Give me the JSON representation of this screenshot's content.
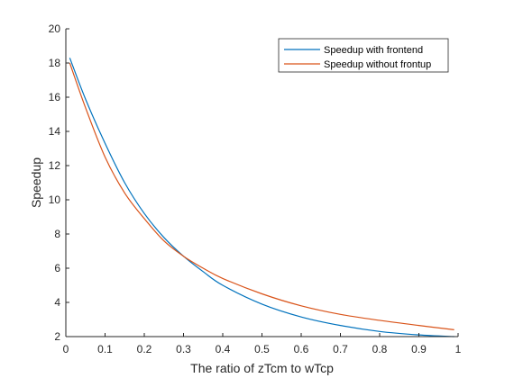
{
  "chart_data": {
    "type": "line",
    "xlabel": "The ratio of zTcm to wTcp",
    "ylabel": "Speedup",
    "xlim": [
      0,
      1
    ],
    "ylim": [
      2,
      20
    ],
    "xticks": [
      0,
      0.1,
      0.2,
      0.3,
      0.4,
      0.5,
      0.6,
      0.7,
      0.8,
      0.9,
      1
    ],
    "yticks": [
      2,
      4,
      6,
      8,
      10,
      12,
      14,
      16,
      18,
      20
    ],
    "grid": false,
    "legend_location": "top-right",
    "x": [
      0.01,
      0.05,
      0.1,
      0.15,
      0.2,
      0.25,
      0.3,
      0.35,
      0.4,
      0.5,
      0.6,
      0.7,
      0.8,
      0.9,
      0.99
    ],
    "series": [
      {
        "name": "Speedup with frontend",
        "color": "#0072bd",
        "values": [
          18.3,
          15.9,
          13.3,
          11.0,
          9.2,
          7.8,
          6.7,
          5.8,
          5.0,
          3.9,
          3.15,
          2.65,
          2.3,
          2.1,
          2.0
        ]
      },
      {
        "name": "Speedup without frontup",
        "color": "#d95319",
        "values": [
          18.0,
          15.4,
          12.5,
          10.4,
          8.9,
          7.6,
          6.7,
          6.0,
          5.4,
          4.5,
          3.8,
          3.3,
          2.95,
          2.65,
          2.4
        ]
      }
    ]
  }
}
